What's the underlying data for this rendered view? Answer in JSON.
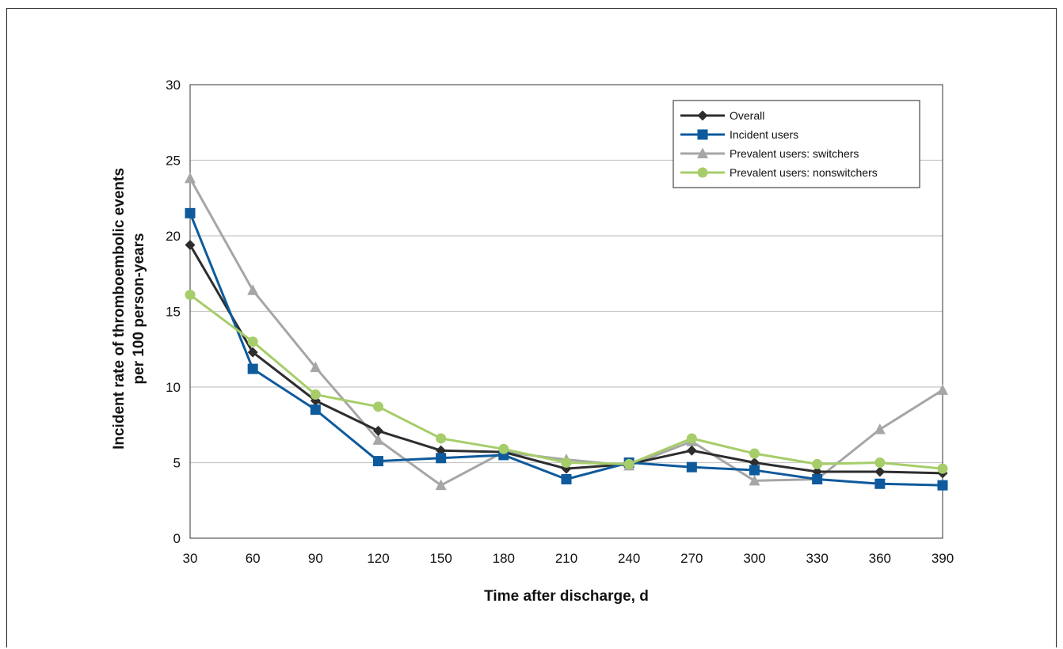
{
  "chart_data": {
    "type": "line",
    "title": "",
    "xlabel": "Time after discharge, d",
    "ylabel_line1": "Incident rate of thromboembolic events",
    "ylabel_line2": "per 100 person-years",
    "x": [
      30,
      60,
      90,
      120,
      150,
      180,
      210,
      240,
      270,
      300,
      330,
      360,
      390
    ],
    "x_ticks": [
      "30",
      "60",
      "90",
      "120",
      "150",
      "180",
      "210",
      "240",
      "270",
      "300",
      "330",
      "360",
      "390"
    ],
    "y_ticks": [
      "0",
      "5",
      "10",
      "15",
      "20",
      "25",
      "30"
    ],
    "ylim": [
      0,
      30
    ],
    "grid": true,
    "legend_position": "top-right",
    "series": [
      {
        "name": "Overall",
        "color": "#2d2d2d",
        "marker": "diamond",
        "values": [
          19.4,
          12.3,
          9.1,
          7.1,
          5.8,
          5.7,
          4.6,
          4.9,
          5.8,
          5.0,
          4.4,
          4.4,
          4.3
        ]
      },
      {
        "name": "Incident users",
        "color": "#0e5a9c",
        "marker": "square",
        "values": [
          21.5,
          11.2,
          8.5,
          5.1,
          5.3,
          5.5,
          3.9,
          5.0,
          4.7,
          4.5,
          3.9,
          3.6,
          3.5
        ]
      },
      {
        "name": "Prevalent users: switchers",
        "color": "#a6a6a6",
        "marker": "triangle",
        "values": [
          23.8,
          16.4,
          11.3,
          6.5,
          3.5,
          5.7,
          5.2,
          4.8,
          6.4,
          3.8,
          3.9,
          7.2,
          9.8
        ]
      },
      {
        "name": "Prevalent users: nonswitchers",
        "color": "#a6cd6a",
        "marker": "circle",
        "values": [
          16.1,
          13.0,
          9.5,
          8.7,
          6.6,
          5.9,
          5.0,
          4.9,
          6.6,
          5.6,
          4.9,
          5.0,
          4.6
        ]
      }
    ]
  }
}
